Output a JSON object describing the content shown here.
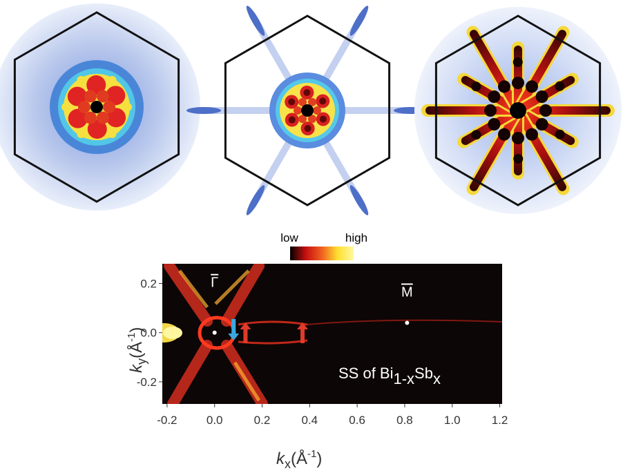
{
  "chart_data": {
    "type": "heatmap",
    "xlim": [
      -0.22,
      1.21
    ],
    "ylim": [
      -0.29,
      0.28
    ],
    "xticks": [
      -0.2,
      {
        "value": 0,
        "label": "0.0"
      },
      0.2,
      0.4,
      0.6,
      0.8,
      {
        "value": 1,
        "label": "1.0"
      },
      1.2
    ],
    "yticks": [
      -0.2,
      {
        "value": 0,
        "label": "0.0"
      },
      0.2
    ],
    "x_label": [
      "k",
      "x",
      "(Å",
      "-1",
      ")"
    ],
    "y_label": [
      "k",
      "y",
      "(Å",
      "-1",
      ")"
    ],
    "colorbar": {
      "labels": [
        "low",
        "high"
      ],
      "colors": [
        "#000000",
        "#c81010",
        "#f06020",
        "#ffe030",
        "#fff8a0"
      ]
    },
    "points": {
      "names": [
        "Γ",
        "M"
      ],
      "x": [
        0,
        0.81
      ],
      "y": [
        0,
        0.04
      ],
      "color": "#ffffff"
    },
    "arrows": {
      "x": [
        0.08,
        0.13,
        0.37
      ],
      "direction": [
        "down",
        "up",
        "up"
      ],
      "colors": [
        "#3aa8e0",
        "#e03a2a",
        "#e03a2a"
      ]
    },
    "annotation": [
      "SS of Bi",
      "1-x",
      "Sb",
      "x"
    ]
  }
}
